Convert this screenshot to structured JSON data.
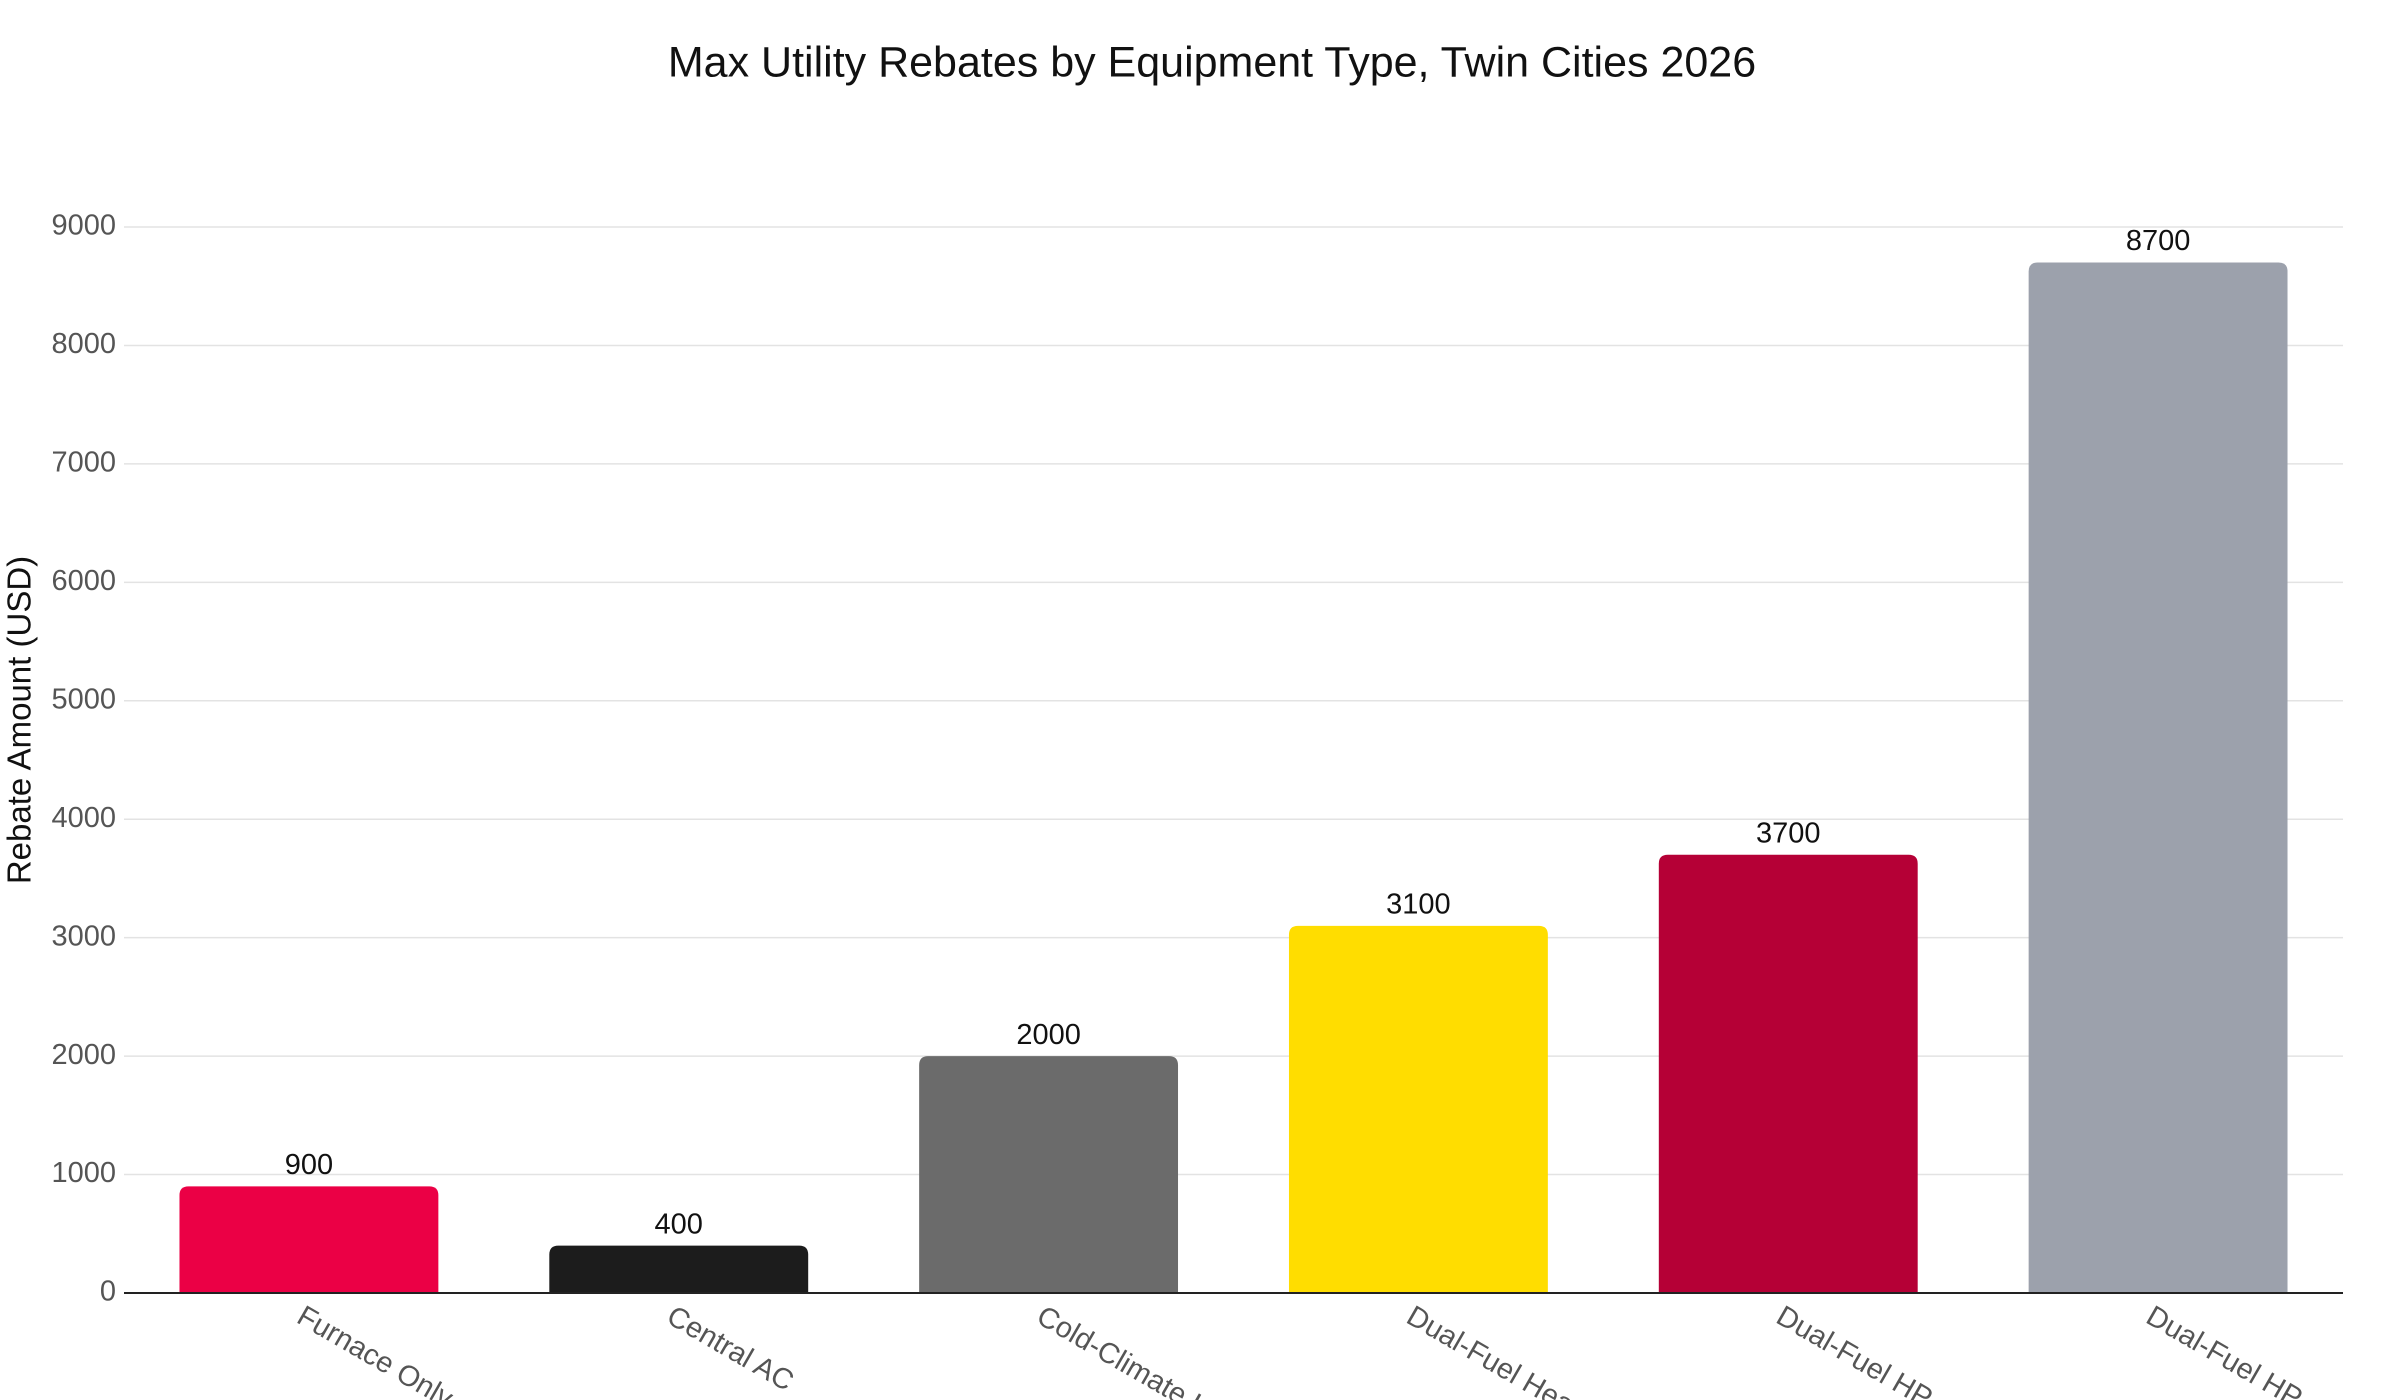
{
  "chart_data": {
    "type": "bar",
    "title": "Max Utility Rebates by Equipment Type, Twin Cities 2026",
    "y_label": "Rebate Amount (USD)",
    "categories": [
      "Furnace Only",
      "Central AC",
      "Cold-Climate H",
      "Dual-Fuel Heat P",
      "Dual-Fuel HP +",
      "Dual-Fuel HP +"
    ],
    "values": [
      900,
      400,
      2000,
      3100,
      3700,
      8700
    ],
    "colors": [
      "#eb0045",
      "#1c1c1c",
      "#6b6b6b",
      "#ffdd00",
      "#b50036",
      "#9ca1ac"
    ],
    "ylim": [
      0,
      9000
    ],
    "yticks": [
      0,
      1000,
      2000,
      3000,
      4000,
      5000,
      6000,
      7000,
      8000,
      9000
    ],
    "grid": true
  }
}
